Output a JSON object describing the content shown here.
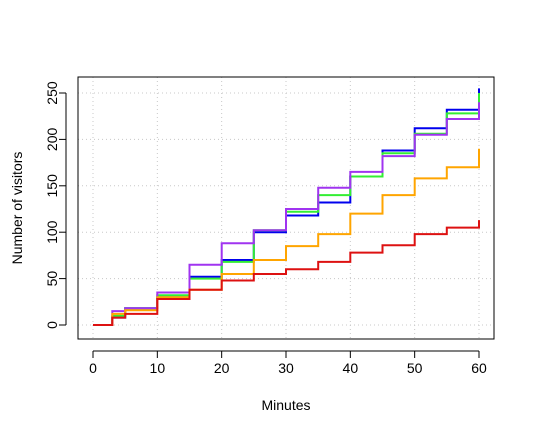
{
  "chart_data": {
    "type": "line",
    "xlabel": "Minutes",
    "ylabel": "Number of visitors",
    "xlim": [
      0,
      60
    ],
    "ylim": [
      0,
      250
    ],
    "x_ticks": [
      0,
      10,
      20,
      30,
      40,
      50,
      60
    ],
    "y_ticks": [
      0,
      50,
      100,
      150,
      200,
      250
    ],
    "grid": true,
    "series": [
      {
        "color": "#0000ee",
        "x": [
          0,
          3,
          5,
          10,
          15,
          20,
          25,
          30,
          35,
          40,
          45,
          50,
          55,
          60
        ],
        "values": [
          0,
          8,
          18,
          30,
          52,
          70,
          100,
          118,
          132,
          160,
          188,
          212,
          232,
          255
        ]
      },
      {
        "color": "#33ee33",
        "x": [
          0,
          3,
          5,
          10,
          15,
          20,
          25,
          30,
          35,
          40,
          45,
          50,
          55,
          60
        ],
        "values": [
          0,
          10,
          18,
          32,
          50,
          68,
          102,
          122,
          140,
          160,
          185,
          206,
          228,
          250
        ]
      },
      {
        "color": "#a034f0",
        "x": [
          0,
          3,
          5,
          10,
          15,
          20,
          25,
          30,
          35,
          40,
          45,
          50,
          55,
          60
        ],
        "values": [
          0,
          15,
          18,
          35,
          65,
          88,
          102,
          125,
          148,
          165,
          182,
          205,
          222,
          240
        ]
      },
      {
        "color": "#ffa500",
        "x": [
          0,
          3,
          5,
          10,
          15,
          20,
          25,
          30,
          35,
          40,
          45,
          50,
          55,
          60
        ],
        "values": [
          0,
          12,
          16,
          30,
          38,
          55,
          70,
          85,
          98,
          120,
          140,
          158,
          170,
          190
        ]
      },
      {
        "color": "#dd1111",
        "x": [
          0,
          3,
          5,
          10,
          15,
          20,
          25,
          30,
          35,
          40,
          45,
          50,
          55,
          60
        ],
        "values": [
          0,
          8,
          12,
          28,
          38,
          48,
          55,
          60,
          68,
          78,
          86,
          98,
          105,
          113
        ]
      }
    ]
  }
}
